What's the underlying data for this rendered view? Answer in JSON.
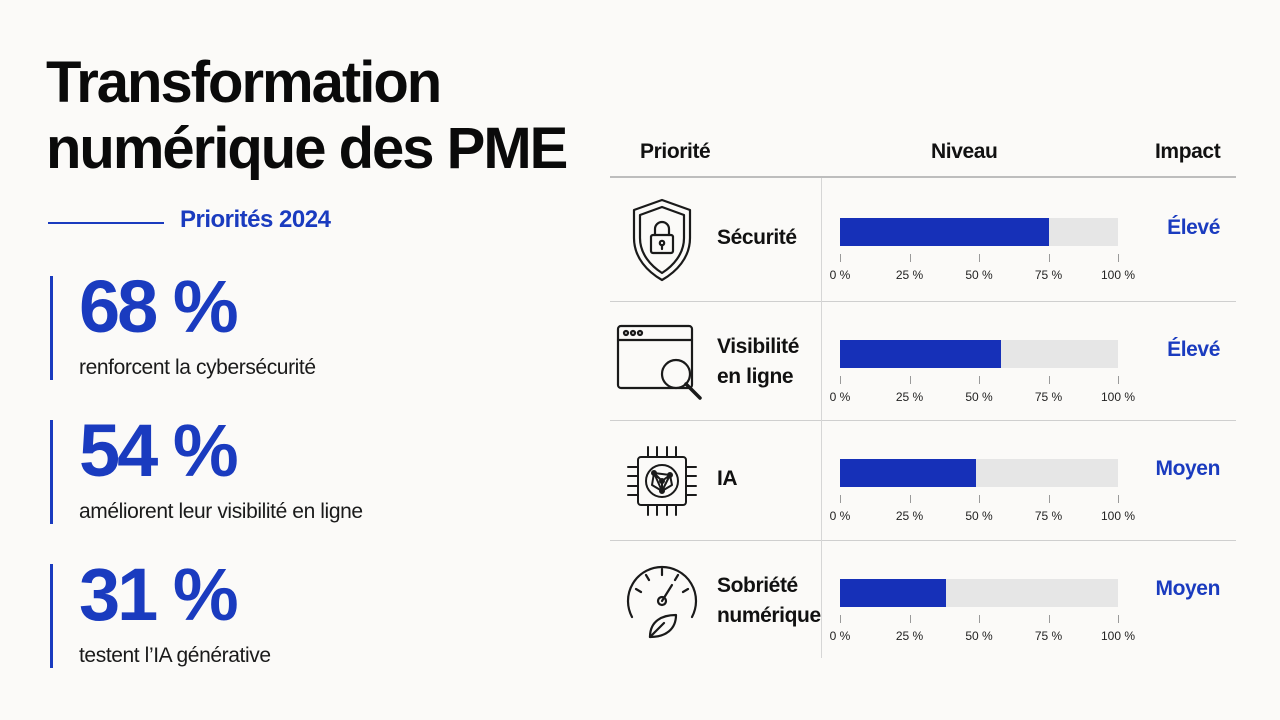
{
  "title": "Transformation numérique des PME",
  "subtitle": "Priorités 2024",
  "stats": [
    {
      "value": "68 %",
      "label": "renforcent la cybersécurité"
    },
    {
      "value": "54 %",
      "label": "améliorent leur visibilité en ligne"
    },
    {
      "value": "31 %",
      "label": "testent l’IA générative"
    }
  ],
  "table": {
    "headers": {
      "priority": "Priorité",
      "level": "Niveau",
      "impact": "Impact"
    }
  },
  "colors": {
    "accent": "#1a3bbf",
    "bar": "#1630b8",
    "track": "#e6e6e6"
  },
  "chart_data": {
    "type": "bar",
    "orientation": "horizontal",
    "categories": [
      "Sécurité",
      "Visibilité en ligne",
      "IA",
      "Sobriété numérique"
    ],
    "category_lines": [
      [
        "Sécurité"
      ],
      [
        "Visibilité",
        "en ligne"
      ],
      [
        "IA"
      ],
      [
        "Sobriété",
        "numérique"
      ]
    ],
    "icons": [
      "shield-lock-icon",
      "browser-search-icon",
      "ai-chip-icon",
      "gauge-leaf-icon"
    ],
    "values": [
      75,
      58,
      49,
      38
    ],
    "impact": [
      "Élevé",
      "Élevé",
      "Moyen",
      "Moyen"
    ],
    "xlim": [
      0,
      100
    ],
    "tick_values": [
      0,
      25,
      50,
      75,
      100
    ],
    "tick_labels": [
      "0 %",
      "25 %",
      "50 %",
      "75 %",
      "100 %"
    ]
  }
}
